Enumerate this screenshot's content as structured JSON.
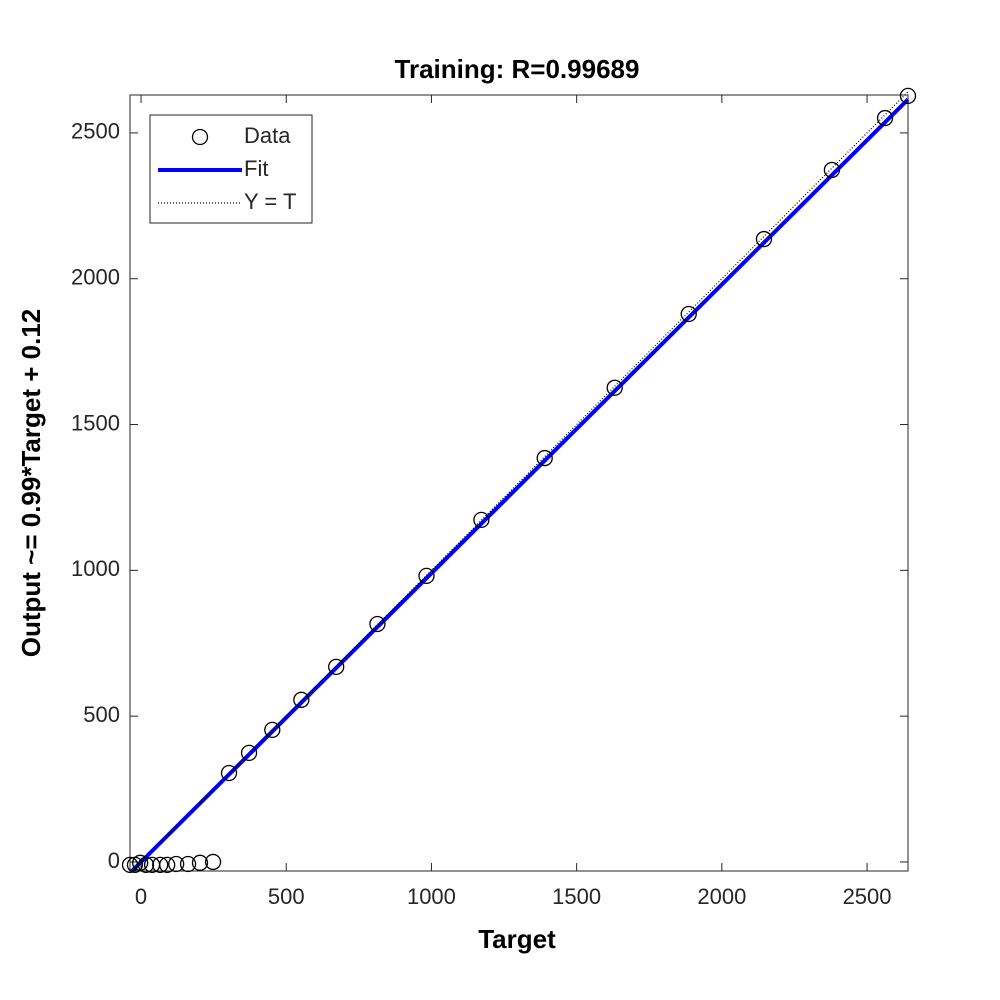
{
  "chart_data": {
    "type": "scatter",
    "title": "Training: R=0.99689",
    "x_label": "Target",
    "y_label": "Output ~= 0.99*Target + 0.12",
    "xlim": [
      -38,
      2641
    ],
    "ylim": [
      -31,
      2630
    ],
    "xticks": [
      0,
      500,
      1000,
      1500,
      2000,
      2500
    ],
    "yticks": [
      0,
      500,
      1000,
      1500,
      2000,
      2500
    ],
    "grid": false,
    "legend": "upper left",
    "series": [
      {
        "name": "Data",
        "color": "#000000",
        "marker": "o",
        "x": [
          -38,
          -21,
          -3,
          17,
          38,
          66,
          90,
          121,
          162,
          203,
          248,
          303,
          372,
          452,
          552,
          672,
          814,
          983,
          1172,
          1390,
          1631,
          1886,
          2145,
          2379,
          2562,
          2641
        ],
        "values": [
          -10,
          -10,
          -3,
          -10,
          -10,
          -10,
          -10,
          -7,
          -7,
          -3,
          0,
          305,
          374,
          453,
          556,
          669,
          816,
          981,
          1173,
          1385,
          1626,
          1879,
          2136,
          2373,
          2551,
          2627
        ]
      },
      {
        "name": "Fit",
        "color": "#0000ff",
        "line": "solid",
        "x": [
          -38,
          2641
        ],
        "values": [
          -37.5,
          2614.7
        ]
      },
      {
        "name": "Y = T",
        "color": "#000000",
        "line": "dotted",
        "x": [
          -38,
          2641
        ],
        "values": [
          -38,
          2641
        ]
      }
    ]
  }
}
